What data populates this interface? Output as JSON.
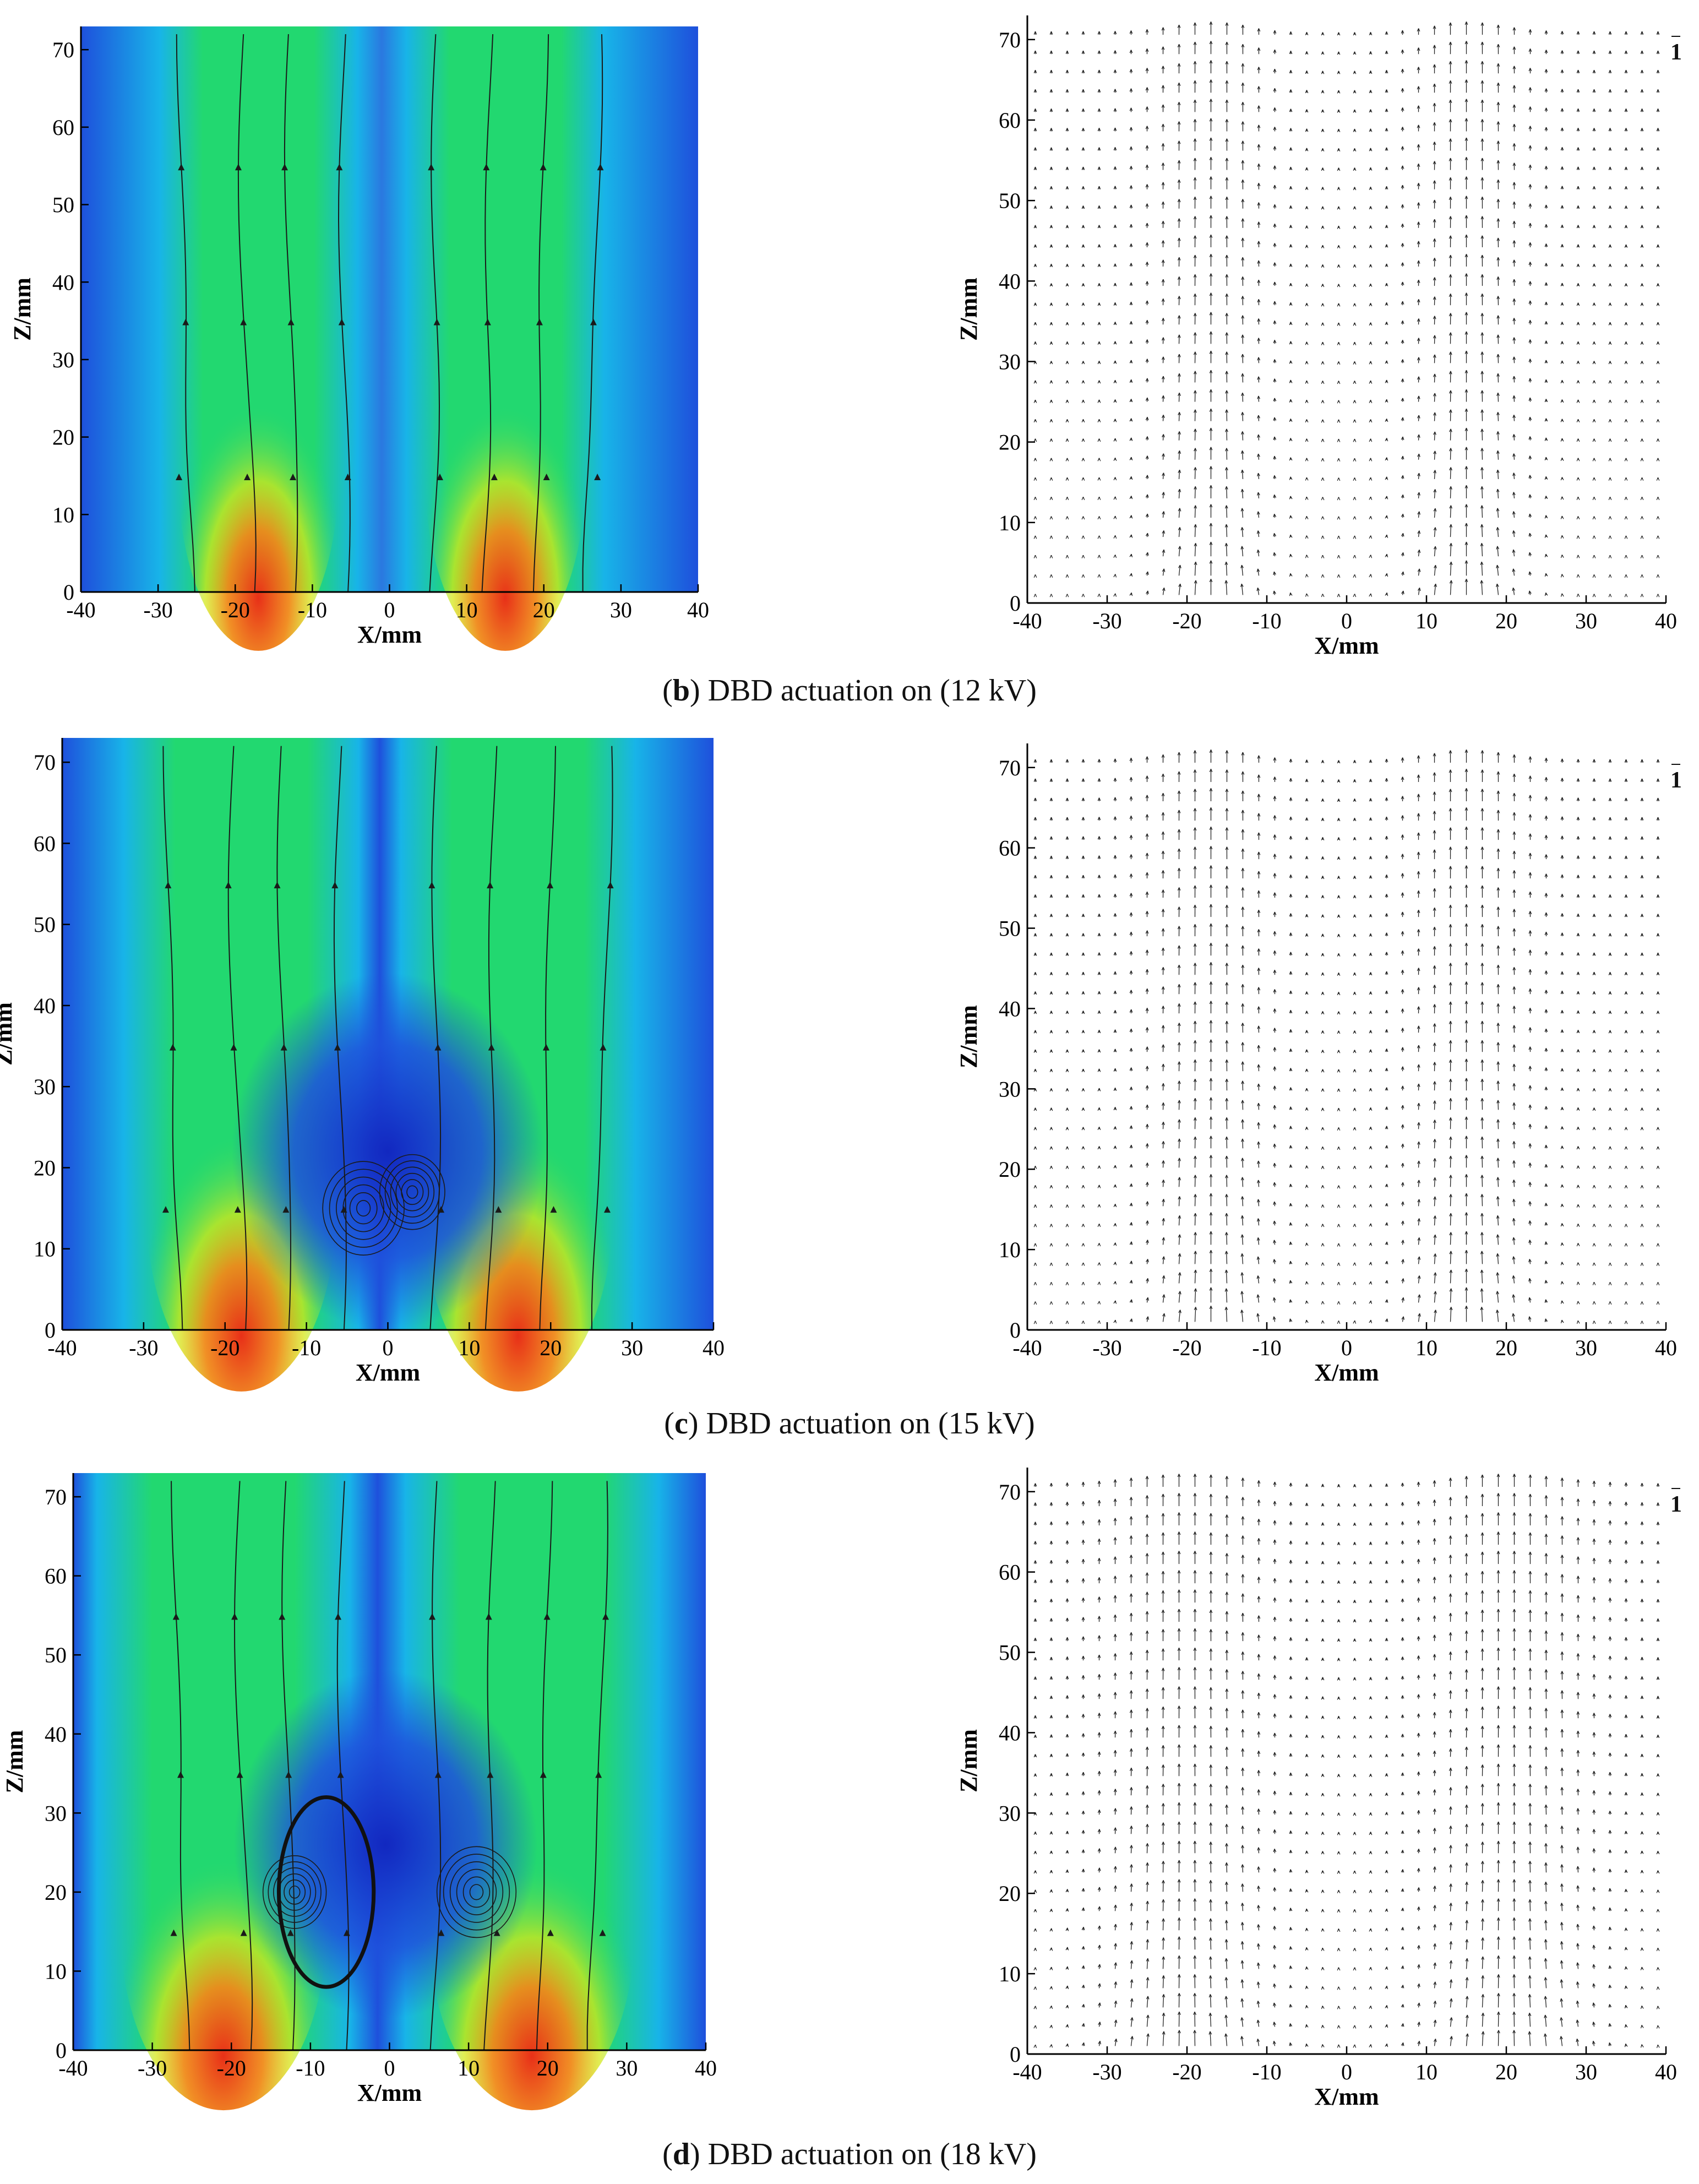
{
  "chart_data": [
    {
      "type": "contour",
      "panel": "b",
      "kind": "velocity-contour-streamlines",
      "xlabel": "X/mm",
      "ylabel": "Z/mm",
      "xlim": [
        -40,
        40
      ],
      "ylim": [
        0,
        73
      ],
      "xticks": [
        -40,
        -30,
        -20,
        -10,
        0,
        10,
        20,
        30,
        40
      ],
      "yticks": [
        0,
        10,
        20,
        30,
        40,
        50,
        60,
        70
      ],
      "jets": [
        {
          "x0": -17,
          "width": 4,
          "peak_z": 3
        },
        {
          "x0": 15,
          "width": 4,
          "peak_z": 3
        }
      ],
      "vortices": []
    },
    {
      "type": "vector",
      "panel": "b",
      "kind": "velocity-vectors",
      "xlabel": "X/mm",
      "ylabel": "Z/mm",
      "xlim": [
        -40,
        40
      ],
      "ylim": [
        0,
        73
      ],
      "xticks": [
        -40,
        -30,
        -20,
        -10,
        0,
        10,
        20,
        30,
        40
      ],
      "yticks": [
        0,
        10,
        20,
        30,
        40,
        50,
        60,
        70
      ],
      "reference_vector": "1",
      "jets": [
        {
          "x0": -17,
          "width": 4
        },
        {
          "x0": 15,
          "width": 4
        }
      ]
    },
    {
      "type": "contour",
      "panel": "c",
      "kind": "velocity-contour-streamlines",
      "xlabel": "X/mm",
      "ylabel": "Z/mm",
      "xlim": [
        -40,
        40
      ],
      "ylim": [
        0,
        73
      ],
      "xticks": [
        -40,
        -30,
        -20,
        -10,
        0,
        10,
        20,
        30,
        40
      ],
      "yticks": [
        0,
        10,
        20,
        30,
        40,
        50,
        60,
        70
      ],
      "jets": [
        {
          "x0": -18,
          "width": 4.5,
          "peak_z": 3
        },
        {
          "x0": 16,
          "width": 4.5,
          "peak_z": 3
        }
      ],
      "vortices": [
        {
          "x": -3,
          "z": 15,
          "r": 5
        },
        {
          "x": 3,
          "z": 17,
          "r": 4
        }
      ]
    },
    {
      "type": "vector",
      "panel": "c",
      "kind": "velocity-vectors",
      "xlabel": "X/mm",
      "ylabel": "Z/mm",
      "xlim": [
        -40,
        40
      ],
      "ylim": [
        0,
        73
      ],
      "xticks": [
        -40,
        -30,
        -20,
        -10,
        0,
        10,
        20,
        30,
        40
      ],
      "yticks": [
        0,
        10,
        20,
        30,
        40,
        50,
        60,
        70
      ],
      "reference_vector": "1",
      "jets": [
        {
          "x0": -17,
          "width": 4.5
        },
        {
          "x0": 15,
          "width": 4.5
        }
      ]
    },
    {
      "type": "contour",
      "panel": "d",
      "kind": "velocity-contour-streamlines",
      "xlabel": "X/mm",
      "ylabel": "Z/mm",
      "xlim": [
        -40,
        40
      ],
      "ylim": [
        0,
        73
      ],
      "xticks": [
        -40,
        -30,
        -20,
        -10,
        0,
        10,
        20,
        30,
        40
      ],
      "yticks": [
        0,
        10,
        20,
        30,
        40,
        50,
        60,
        70
      ],
      "jets": [
        {
          "x0": -21,
          "width": 5,
          "peak_z": 5
        },
        {
          "x0": 18,
          "width": 5,
          "peak_z": 5
        }
      ],
      "vortices": [
        {
          "x": -12,
          "z": 20,
          "r": 4
        },
        {
          "x": 11,
          "z": 20,
          "r": 5
        }
      ],
      "separatrix": {
        "x": -8,
        "z": 20,
        "rx": 6,
        "rz": 12
      }
    },
    {
      "type": "vector",
      "panel": "d",
      "kind": "velocity-vectors",
      "xlabel": "X/mm",
      "ylabel": "Z/mm",
      "xlim": [
        -40,
        40
      ],
      "ylim": [
        0,
        73
      ],
      "xticks": [
        -40,
        -30,
        -20,
        -10,
        0,
        10,
        20,
        30,
        40
      ],
      "yticks": [
        0,
        10,
        20,
        30,
        40,
        50,
        60,
        70
      ],
      "reference_vector": "1",
      "jets": [
        {
          "x0": -20,
          "width": 6
        },
        {
          "x0": 20,
          "width": 6
        }
      ]
    }
  ],
  "captions": [
    {
      "tag": "b",
      "text": "DBD actuation on (12 kV)"
    },
    {
      "tag": "c",
      "text": "DBD actuation on (15 kV)"
    },
    {
      "tag": "d",
      "text": "DBD actuation on (18 kV)"
    }
  ],
  "colors": {
    "low": "#1e50dc",
    "mid_low": "#18b4e8",
    "mid": "#22d870",
    "mid_high": "#d6e81a",
    "high": "#e83018",
    "line": "#1a1a1a"
  }
}
